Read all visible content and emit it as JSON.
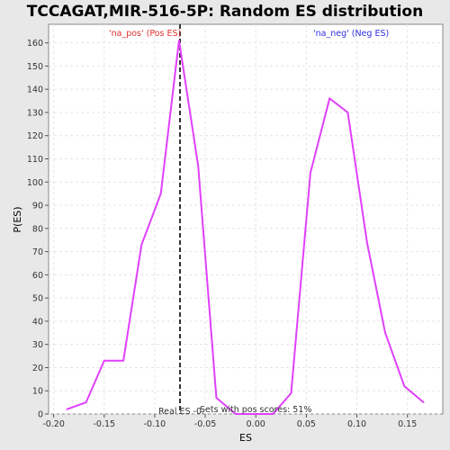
{
  "chart_data": {
    "type": "line",
    "title": "TCCAGAT,MIR-516-5P: Random ES distribution",
    "xlabel": "ES",
    "ylabel": "P(ES)",
    "xlim": [
      -0.205,
      0.185
    ],
    "ylim": [
      0,
      168
    ],
    "x_ticks": [
      -0.2,
      -0.15,
      -0.1,
      -0.05,
      0.0,
      0.05,
      0.1,
      0.15
    ],
    "x_tick_labels": [
      "-0.20",
      "-0.15",
      "-0.10",
      "-0.05",
      "0.00",
      "0.05",
      "0.10",
      "0.15"
    ],
    "y_ticks": [
      0,
      10,
      20,
      30,
      40,
      50,
      60,
      70,
      80,
      90,
      100,
      110,
      120,
      130,
      140,
      150,
      160
    ],
    "grid": true,
    "line_color": "#e040fb",
    "series": [
      {
        "x": [
          -0.187,
          -0.168,
          -0.15,
          -0.131,
          -0.113,
          -0.094,
          -0.076,
          -0.057,
          -0.039,
          -0.02,
          -0.002,
          0.017,
          0.035,
          0.054,
          0.073,
          0.091,
          0.11,
          0.128,
          0.147,
          0.166
        ],
        "y": [
          2,
          5,
          23,
          23,
          73,
          95,
          161,
          107,
          7,
          0,
          0,
          0,
          9,
          104,
          136,
          130,
          74,
          35,
          12,
          5
        ]
      }
    ],
    "real_es": -0.075,
    "annotations": {
      "pos_label": "'na_pos' (Pos ES)",
      "neg_label": "'na_neg' (Neg ES)",
      "real_es_label": "Real ES -0.",
      "pos_scores_label": "Sets with pos scores: 51%"
    },
    "colors": {
      "pos": "#e03030",
      "neg": "#3030e0",
      "real_es_line": "#333333"
    }
  }
}
